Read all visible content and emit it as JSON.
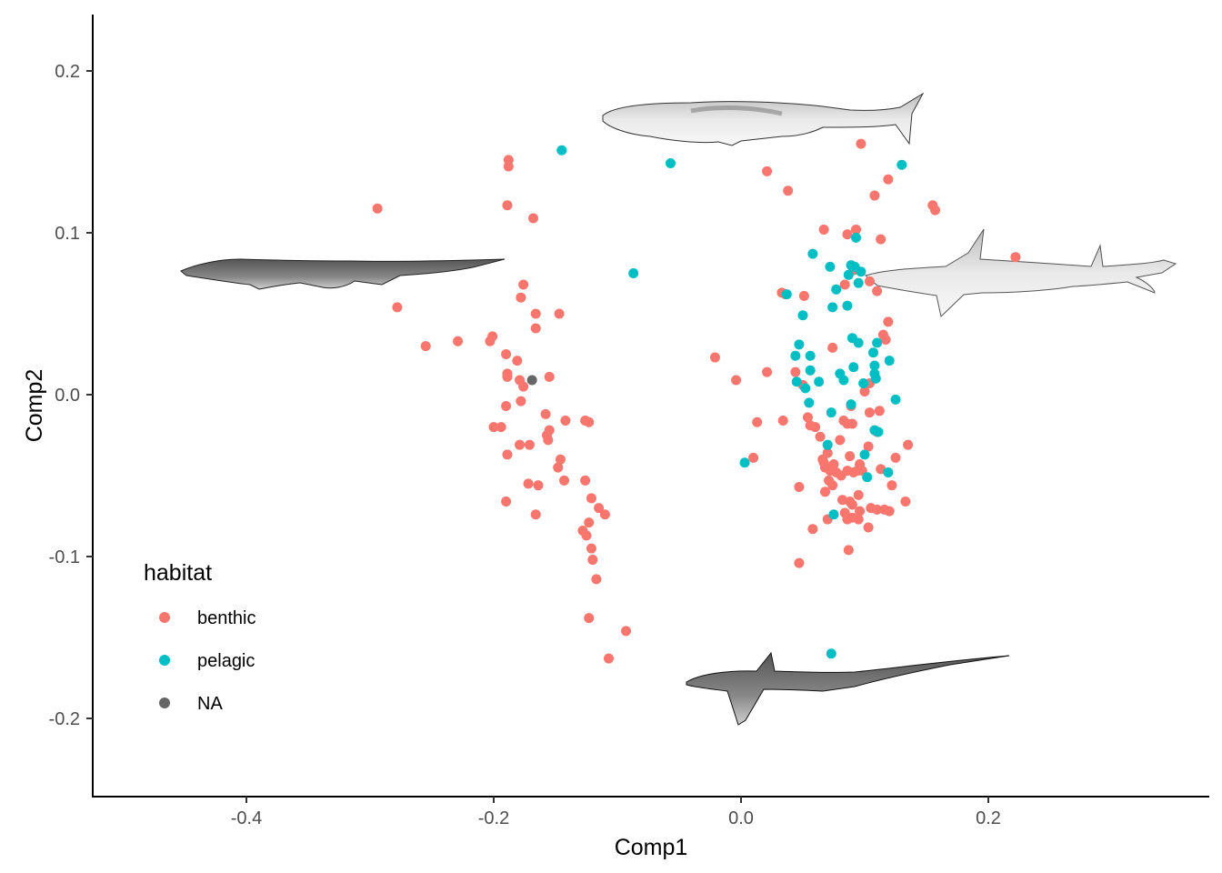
{
  "chart_data": {
    "type": "scatter",
    "xlabel": "Comp1",
    "ylabel": "Comp2",
    "xlim": [
      -0.52,
      0.38
    ],
    "ylim": [
      -0.248,
      0.235
    ],
    "x_ticks": [
      {
        "value": -0.4,
        "label": "-0.4"
      },
      {
        "value": -0.2,
        "label": "-0.2"
      },
      {
        "value": 0.0,
        "label": "0.0"
      },
      {
        "value": 0.2,
        "label": "0.2"
      }
    ],
    "y_ticks": [
      {
        "value": 0.2,
        "label": "0.2"
      },
      {
        "value": 0.1,
        "label": "0.1"
      },
      {
        "value": 0.0,
        "label": "0.0"
      },
      {
        "value": -0.1,
        "label": "-0.1"
      },
      {
        "value": -0.2,
        "label": "-0.2"
      }
    ],
    "grid": false,
    "legend": {
      "title": "habitat",
      "position": "bottom-left-inside",
      "entries": [
        {
          "label": "benthic",
          "color": "#F8766D"
        },
        {
          "label": "pelagic",
          "color": "#00BFC4"
        },
        {
          "label": "NA",
          "color": "#666666"
        }
      ]
    },
    "series": [
      {
        "name": "benthic",
        "color": "#F8766D",
        "points": [
          [
            -0.294,
            0.115
          ],
          [
            -0.278,
            0.054
          ],
          [
            -0.255,
            0.03
          ],
          [
            -0.229,
            0.033
          ],
          [
            -0.203,
            0.033
          ],
          [
            -0.201,
            0.036
          ],
          [
            -0.188,
            0.145
          ],
          [
            -0.188,
            0.141
          ],
          [
            -0.189,
            0.117
          ],
          [
            -0.168,
            0.109
          ],
          [
            -0.176,
            0.068
          ],
          [
            -0.178,
            0.06
          ],
          [
            -0.166,
            0.05
          ],
          [
            -0.166,
            0.041
          ],
          [
            -0.147,
            0.05
          ],
          [
            -0.19,
            0.025
          ],
          [
            -0.181,
            0.021
          ],
          [
            -0.189,
            0.013
          ],
          [
            -0.189,
            0.011
          ],
          [
            -0.155,
            0.011
          ],
          [
            -0.179,
            0.009
          ],
          [
            -0.176,
            0.005
          ],
          [
            -0.19,
            -0.007
          ],
          [
            -0.178,
            -0.004
          ],
          [
            -0.2,
            -0.02
          ],
          [
            -0.194,
            -0.02
          ],
          [
            -0.158,
            -0.012
          ],
          [
            -0.155,
            -0.022
          ],
          [
            -0.157,
            -0.025
          ],
          [
            -0.156,
            -0.028
          ],
          [
            -0.142,
            -0.016
          ],
          [
            -0.126,
            -0.016
          ],
          [
            -0.123,
            -0.017
          ],
          [
            -0.179,
            -0.031
          ],
          [
            -0.171,
            -0.031
          ],
          [
            -0.189,
            -0.037
          ],
          [
            -0.146,
            -0.04
          ],
          [
            -0.148,
            -0.045
          ],
          [
            -0.143,
            -0.053
          ],
          [
            -0.172,
            -0.055
          ],
          [
            -0.164,
            -0.056
          ],
          [
            -0.126,
            -0.053
          ],
          [
            -0.19,
            -0.066
          ],
          [
            -0.166,
            -0.074
          ],
          [
            -0.121,
            -0.064
          ],
          [
            -0.115,
            -0.07
          ],
          [
            -0.11,
            -0.074
          ],
          [
            -0.123,
            -0.079
          ],
          [
            -0.128,
            -0.084
          ],
          [
            -0.125,
            -0.087
          ],
          [
            -0.121,
            -0.095
          ],
          [
            -0.12,
            -0.102
          ],
          [
            -0.117,
            -0.114
          ],
          [
            -0.123,
            -0.138
          ],
          [
            -0.093,
            -0.146
          ],
          [
            -0.107,
            -0.163
          ],
          [
            -0.021,
            0.023
          ],
          [
            -0.004,
            0.009
          ],
          [
            0.021,
            0.138
          ],
          [
            0.038,
            0.126
          ],
          [
            0.021,
            0.014
          ],
          [
            0.033,
            0.063
          ],
          [
            0.036,
            0.062
          ],
          [
            0.013,
            -0.017
          ],
          [
            0.01,
            -0.039
          ],
          [
            0.034,
            -0.016
          ],
          [
            0.044,
            0.014
          ],
          [
            0.05,
            0.006
          ],
          [
            0.047,
            -0.057
          ],
          [
            0.051,
            0.061
          ],
          [
            0.067,
            0.102
          ],
          [
            0.074,
            0.029
          ],
          [
            0.054,
            -0.014
          ],
          [
            0.056,
            -0.019
          ],
          [
            0.06,
            -0.02
          ],
          [
            0.064,
            -0.026
          ],
          [
            0.066,
            -0.04
          ],
          [
            0.067,
            -0.042
          ],
          [
            0.068,
            -0.045
          ],
          [
            0.07,
            -0.036
          ],
          [
            0.071,
            -0.053
          ],
          [
            0.072,
            -0.047
          ],
          [
            0.075,
            -0.043
          ],
          [
            0.077,
            -0.048
          ],
          [
            0.074,
            -0.056
          ],
          [
            0.068,
            -0.06
          ],
          [
            0.058,
            -0.083
          ],
          [
            0.07,
            -0.077
          ],
          [
            0.047,
            -0.104
          ],
          [
            0.084,
            0.068
          ],
          [
            0.086,
            0.099
          ],
          [
            0.093,
            0.102
          ],
          [
            0.097,
            0.155
          ],
          [
            0.091,
            0.077
          ],
          [
            0.083,
            -0.016
          ],
          [
            0.086,
            -0.018
          ],
          [
            0.089,
            -0.007
          ],
          [
            0.09,
            -0.018
          ],
          [
            0.08,
            -0.028
          ],
          [
            0.081,
            -0.05
          ],
          [
            0.086,
            -0.047
          ],
          [
            0.088,
            -0.038
          ],
          [
            0.091,
            -0.048
          ],
          [
            0.094,
            -0.047
          ],
          [
            0.096,
            -0.043
          ],
          [
            0.098,
            -0.047
          ],
          [
            0.082,
            -0.065
          ],
          [
            0.088,
            -0.066
          ],
          [
            0.09,
            -0.068
          ],
          [
            0.084,
            -0.073
          ],
          [
            0.086,
            -0.077
          ],
          [
            0.09,
            -0.076
          ],
          [
            0.095,
            -0.062
          ],
          [
            0.095,
            -0.077
          ],
          [
            0.096,
            -0.072
          ],
          [
            0.087,
            -0.096
          ],
          [
            0.104,
            0.07
          ],
          [
            0.108,
            0.123
          ],
          [
            0.11,
            0.064
          ],
          [
            0.113,
            0.096
          ],
          [
            0.115,
            0.037
          ],
          [
            0.117,
            0.034
          ],
          [
            0.119,
            0.045
          ],
          [
            0.104,
            0.007
          ],
          [
            0.1,
            0.002
          ],
          [
            0.104,
            -0.011
          ],
          [
            0.11,
            -0.023
          ],
          [
            0.112,
            -0.01
          ],
          [
            0.103,
            -0.032
          ],
          [
            0.105,
            -0.07
          ],
          [
            0.103,
            -0.082
          ],
          [
            0.11,
            -0.071
          ],
          [
            0.116,
            -0.071
          ],
          [
            0.12,
            -0.072
          ],
          [
            0.122,
            -0.056
          ],
          [
            0.125,
            -0.039
          ],
          [
            0.133,
            -0.066
          ],
          [
            0.135,
            -0.031
          ],
          [
            0.113,
            -0.046
          ],
          [
            0.119,
            0.133
          ],
          [
            0.155,
            0.117
          ],
          [
            0.157,
            0.114
          ],
          [
            0.222,
            0.085
          ]
        ]
      },
      {
        "name": "pelagic",
        "color": "#00BFC4",
        "points": [
          [
            -0.145,
            0.151
          ],
          [
            -0.057,
            0.143
          ],
          [
            -0.087,
            0.075
          ],
          [
            0.003,
            -0.042
          ],
          [
            0.037,
            0.062
          ],
          [
            0.044,
            0.024
          ],
          [
            0.045,
            0.008
          ],
          [
            0.047,
            0.031
          ],
          [
            0.05,
            0.049
          ],
          [
            0.052,
            0.004
          ],
          [
            0.056,
            0.015
          ],
          [
            0.056,
            0.024
          ],
          [
            0.055,
            -0.005
          ],
          [
            0.058,
            0.087
          ],
          [
            0.063,
            0.008
          ],
          [
            0.07,
            -0.031
          ],
          [
            0.072,
            0.079
          ],
          [
            0.073,
            -0.011
          ],
          [
            0.074,
            0.054
          ],
          [
            0.075,
            -0.074
          ],
          [
            0.077,
            0.065
          ],
          [
            0.08,
            0.013
          ],
          [
            0.083,
            0.009
          ],
          [
            0.086,
            0.055
          ],
          [
            0.087,
            0.074
          ],
          [
            0.089,
            0.08
          ],
          [
            0.09,
            0.035
          ],
          [
            0.091,
            0.017
          ],
          [
            0.089,
            -0.006
          ],
          [
            0.092,
            0.079
          ],
          [
            0.093,
            0.097
          ],
          [
            0.095,
            0.032
          ],
          [
            0.097,
            0.076
          ],
          [
            0.095,
            0.069
          ],
          [
            0.099,
            0.007
          ],
          [
            0.1,
            -0.037
          ],
          [
            0.102,
            -0.051
          ],
          [
            0.107,
            0.026
          ],
          [
            0.108,
            0.018
          ],
          [
            0.109,
            0.01
          ],
          [
            0.108,
            0.013
          ],
          [
            0.11,
            0.032
          ],
          [
            0.108,
            -0.022
          ],
          [
            0.111,
            -0.023
          ],
          [
            0.12,
            0.021
          ],
          [
            0.119,
            -0.048
          ],
          [
            0.125,
            -0.003
          ],
          [
            0.13,
            0.142
          ],
          [
            0.073,
            -0.16
          ]
        ]
      },
      {
        "name": "NA",
        "color": "#666666",
        "points": [
          [
            -0.169,
            0.009
          ]
        ]
      }
    ]
  }
}
